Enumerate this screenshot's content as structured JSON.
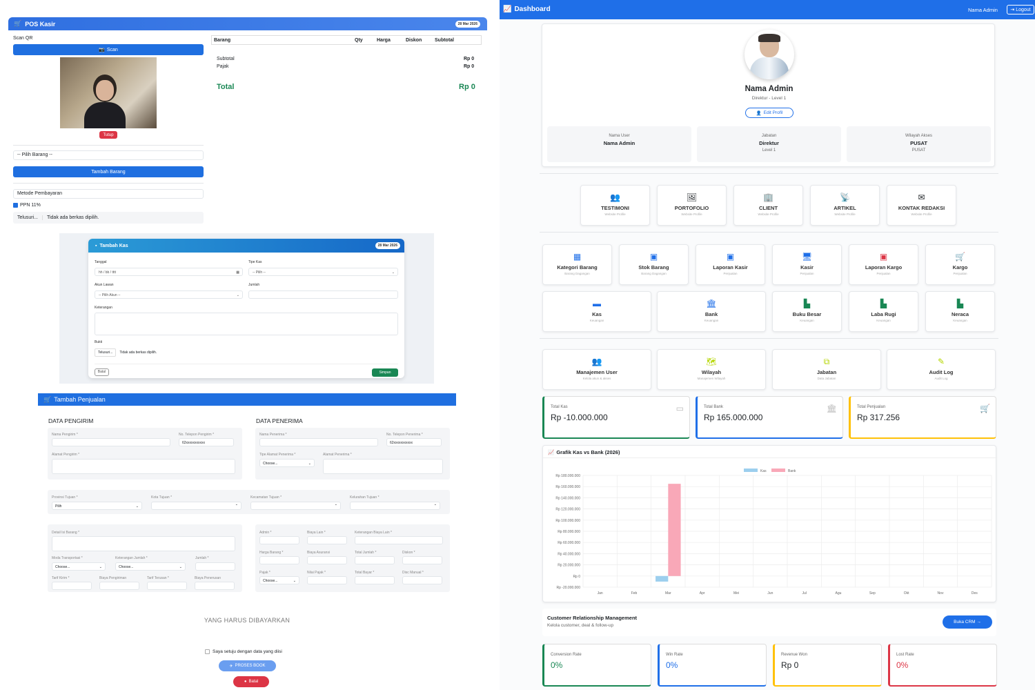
{
  "pos": {
    "title": "POS Kasir",
    "date": "28 Mar 2026",
    "scan_label": "Scan QR",
    "scan_button": "Scan",
    "close_button": "Tutup",
    "item_select": "-- Pilih Barang --",
    "add_item_button": "Tambah Barang",
    "payment_method": "Metode Pembayaran",
    "ppn_label": "PPN 11%",
    "browse": "Telusuri...",
    "no_file": "Tidak ada berkas dipilih.",
    "columns": [
      "Barang",
      "Qty",
      "Harga",
      "Diskon",
      "Subtotal"
    ],
    "subtotal_label": "Subtotal",
    "subtotal_value": "Rp 0",
    "tax_label": "Pajak",
    "tax_value": "Rp 0",
    "total_label": "Total",
    "total_value": "Rp 0"
  },
  "kas": {
    "title": "Tambah Kas",
    "date": "28 Mar 2026",
    "date_label": "Tanggal",
    "date_placeholder": "hh / bb / tttt",
    "type_label": "Tipe Kas",
    "type_select": "-- Pilih --",
    "account_label": "Akun Lawan",
    "account_select": "-- Pilih Akun --",
    "amount_label": "Jumlah",
    "note_label": "Keterangan",
    "proof_label": "Bukti",
    "browse": "Telusuri...",
    "no_file": "Tidak ada berkas dipilih.",
    "cancel_button": "Batal",
    "save_button": "Simpan"
  },
  "jual": {
    "title": "Tambah Penjualan",
    "sender_title": "DATA PENGIRIM",
    "receiver_title": "DATA PENERIMA",
    "sender_name": "Nama Pengirim *",
    "sender_phone": "No. Telepon Pengirim *",
    "phone_value": "62xxxxxxxxxxx",
    "sender_address": "Alamat Pengirim *",
    "receiver_name": "Nama Penerima *",
    "receiver_phone": "No. Telepon Penerima *",
    "receiver_address_type": "Tipe Alamat Penerima *",
    "receiver_address": "Alamat Penerima *",
    "choose": "Choose...",
    "province": "Provinsi Tujuan *",
    "province_value": "Pilih",
    "city": "Kota Tujuan *",
    "district": "Kecamatan Tujuan *",
    "village": "Kelurahan Tujuan *",
    "item_detail": "Detail Isi Barang *",
    "transport": "Moda Transportasi *",
    "qty_note": "Keterangan Jumlah *",
    "qty": "Jumlah *",
    "tariff": "Tarif Kirim *",
    "ship_cost": "Biaya Pengiriman",
    "tariff_forward": "Tarif Terusan *",
    "forward_cost": "Biaya Penerusan",
    "admin": "Admin *",
    "other_cost": "Biaya Lain *",
    "other_note": "Keterangan Biaya Lain *",
    "item_price": "Harga Barang *",
    "insurance": "Biaya Asuransi",
    "total_qty": "Total Jumlah *",
    "discount": "Diskon *",
    "tax": "Pajak *",
    "tax_value": "Nilai Pajak *",
    "total_pay": "Total Bayar *",
    "manual_disc": "Disc Manual *",
    "pay_title": "YANG HARUS DIBAYARKAN",
    "agree": "Saya setuju dengan data yang diisi",
    "process_button": "PROSES BOOK",
    "cancel_button": "Batal"
  },
  "dash": {
    "title": "Dashboard",
    "user": "Nama Admin",
    "logout": "Logout",
    "profile_name": "Nama Admin",
    "profile_role": "Direktur - Level 1",
    "edit_profile": "Edit Profil",
    "info": [
      {
        "label": "Nama User",
        "value": "Nama Admin",
        "sub": ""
      },
      {
        "label": "Jabatan",
        "value": "Direktur",
        "sub": "Level 1"
      },
      {
        "label": "Wilayah Akses",
        "value": "PUSAT",
        "sub": "PUSAT"
      }
    ],
    "web_modules": [
      {
        "title": "TESTIMONI",
        "sub": "Website Profile",
        "icon": "users-icon"
      },
      {
        "title": "PORTOFOLIO",
        "sub": "Website Profile",
        "icon": "images-icon"
      },
      {
        "title": "CLIENT",
        "sub": "Website Profile",
        "icon": "building-icon"
      },
      {
        "title": "ARTIKEL",
        "sub": "Website Profile",
        "icon": "rss-icon"
      },
      {
        "title": "KONTAK REDAKSI",
        "sub": "Website Profile",
        "icon": "envelope-icon"
      }
    ],
    "modules_row1": [
      {
        "title": "Kategori Barang",
        "sub": "Barang Dagangan",
        "color": "#1f6fe8"
      },
      {
        "title": "Stok Barang",
        "sub": "Barang Dagangan",
        "color": "#1f6fe8"
      },
      {
        "title": "Laporan Kasir",
        "sub": "Penjualan",
        "color": "#1f6fe8"
      },
      {
        "title": "Kasir",
        "sub": "Penjualan",
        "color": "#1f6fe8"
      },
      {
        "title": "Laporan Kargo",
        "sub": "Penjualan",
        "color": "#dc3545"
      },
      {
        "title": "Kargo",
        "sub": "Penjualan",
        "color": "#dc3545"
      }
    ],
    "modules_row2": [
      {
        "title": "Kas",
        "sub": "Keuangan",
        "color": "#1f6fe8"
      },
      {
        "title": "Bank",
        "sub": "Keuangan",
        "color": "#1f6fe8"
      },
      {
        "title": "Buku Besar",
        "sub": "Keuangan",
        "color": "#198754"
      },
      {
        "title": "Laba Rugi",
        "sub": "Keuangan",
        "color": "#198754"
      },
      {
        "title": "Neraca",
        "sub": "Keuangan",
        "color": "#198754"
      }
    ],
    "modules_row3": [
      {
        "title": "Manajemen User",
        "sub": "Kelola akun & akses",
        "color": "#b5d600"
      },
      {
        "title": "Wilayah",
        "sub": "Manajemen Wilayah",
        "color": "#b5d600"
      },
      {
        "title": "Jabatan",
        "sub": "Data Jabatan",
        "color": "#b5d600"
      },
      {
        "title": "Audit Log",
        "sub": "Audit Log",
        "color": "#b5d600"
      }
    ],
    "stats": [
      {
        "label": "Total Kas",
        "value": "Rp -10.000.000",
        "color": "#198754"
      },
      {
        "label": "Total Bank",
        "value": "Rp 165.000.000",
        "color": "#1f6fe8"
      },
      {
        "label": "Total Penjualan",
        "value": "Rp 317.256",
        "color": "#ffc107"
      }
    ],
    "chart_title": "Grafik Kas vs Bank (2026)",
    "crm_title": "Customer Relationship Management",
    "crm_sub": "Kelola customer, deal & follow-up",
    "crm_button": "Buka CRM →",
    "crm_stats": [
      {
        "label": "Conversion Rate",
        "value": "0%",
        "color": "#198754"
      },
      {
        "label": "Win Rate",
        "value": "0%",
        "color": "#1f6fe8"
      },
      {
        "label": "Revenue Won",
        "value": "Rp 0",
        "color": "#ffc107"
      },
      {
        "label": "Lost Rate",
        "value": "0%",
        "color": "#dc3545"
      }
    ]
  },
  "chart_data": {
    "type": "bar",
    "title": "Grafik Kas vs Bank (2026)",
    "categories": [
      "Jan",
      "Feb",
      "Mar",
      "Apr",
      "Mei",
      "Jun",
      "Jul",
      "Agu",
      "Sep",
      "Okt",
      "Nov",
      "Des"
    ],
    "series": [
      {
        "name": "Kas",
        "color": "#9ccfee",
        "values": [
          0,
          0,
          -10000000,
          0,
          0,
          0,
          0,
          0,
          0,
          0,
          0,
          0
        ]
      },
      {
        "name": "Bank",
        "color": "#f9a8b8",
        "values": [
          0,
          0,
          165000000,
          0,
          0,
          0,
          0,
          0,
          0,
          0,
          0,
          0
        ]
      }
    ],
    "ylim": [
      -20000000,
      180000000
    ],
    "yticks": [
      "Rp 180.000.000",
      "Rp 160.000.000",
      "Rp 140.000.000",
      "Rp 120.000.000",
      "Rp 100.000.000",
      "Rp 80.000.000",
      "Rp 60.000.000",
      "Rp 40.000.000",
      "Rp 20.000.000",
      "Rp 0",
      "Rp -20.000.000"
    ],
    "legend": "top"
  }
}
